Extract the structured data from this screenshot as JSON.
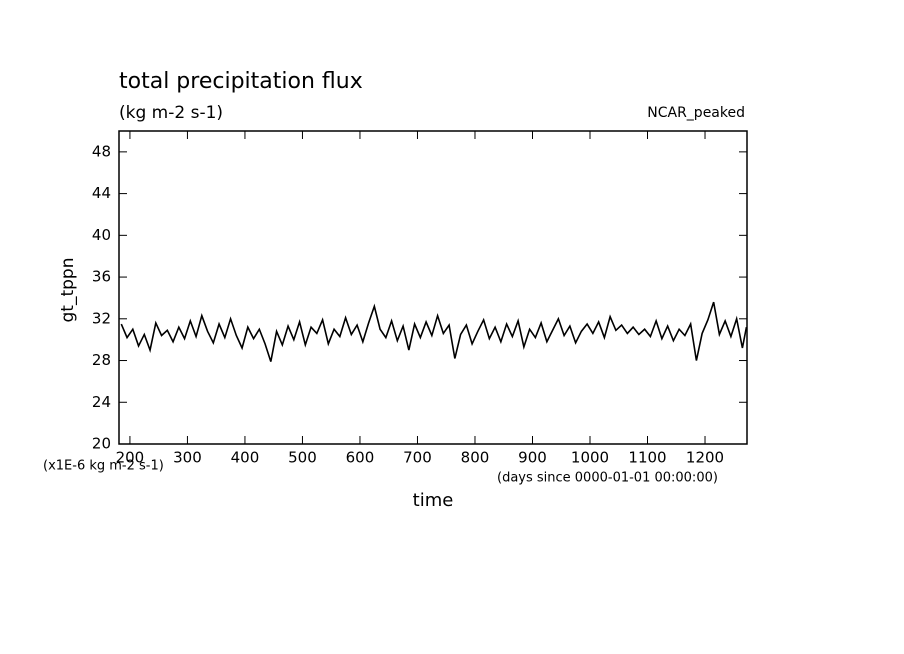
{
  "chart_data": {
    "type": "line",
    "title": "total precipitation flux",
    "subtitle": "(kg m-2 s-1)",
    "annotation": "NCAR_peaked",
    "ylabel": "gt_tppn",
    "yunits": "(x1E-6 kg m-2 s-1)",
    "xlabel": "time",
    "xunits": "(days since 0000-01-01 00:00:00)",
    "xlim": [
      181,
      1273
    ],
    "ylim": [
      20,
      50
    ],
    "xticks": [
      200,
      300,
      400,
      500,
      600,
      700,
      800,
      900,
      1000,
      1100,
      1200
    ],
    "yticks": [
      20,
      24,
      28,
      32,
      36,
      40,
      44,
      48
    ],
    "color": "#000000",
    "x": [
      185,
      195,
      205,
      215,
      225,
      235,
      245,
      255,
      265,
      275,
      285,
      295,
      305,
      315,
      325,
      335,
      345,
      355,
      365,
      375,
      385,
      395,
      405,
      415,
      425,
      435,
      445,
      455,
      465,
      475,
      485,
      495,
      505,
      515,
      525,
      535,
      545,
      555,
      565,
      575,
      585,
      595,
      605,
      615,
      625,
      635,
      645,
      655,
      665,
      675,
      685,
      695,
      705,
      715,
      725,
      735,
      745,
      755,
      765,
      775,
      785,
      795,
      805,
      815,
      825,
      835,
      845,
      855,
      865,
      875,
      885,
      895,
      905,
      915,
      925,
      935,
      945,
      955,
      965,
      975,
      985,
      995,
      1005,
      1015,
      1025,
      1035,
      1045,
      1055,
      1065,
      1075,
      1085,
      1095,
      1105,
      1115,
      1125,
      1135,
      1145,
      1155,
      1165,
      1175,
      1185,
      1195,
      1205,
      1215,
      1225,
      1235,
      1245,
      1255,
      1265,
      1272
    ],
    "values": [
      31.5,
      30.2,
      31.0,
      29.4,
      30.5,
      29.0,
      31.6,
      30.4,
      30.9,
      29.8,
      31.2,
      30.1,
      31.8,
      30.3,
      32.3,
      30.8,
      29.7,
      31.5,
      30.2,
      32.0,
      30.4,
      29.2,
      31.2,
      30.1,
      31.0,
      29.6,
      27.9,
      30.8,
      29.5,
      31.3,
      30.0,
      31.7,
      29.5,
      31.2,
      30.6,
      31.9,
      29.6,
      31.0,
      30.3,
      32.1,
      30.5,
      31.4,
      29.8,
      31.6,
      33.2,
      31.0,
      30.2,
      31.8,
      29.9,
      31.3,
      29.0,
      31.5,
      30.2,
      31.7,
      30.4,
      32.3,
      30.6,
      31.4,
      28.2,
      30.5,
      31.4,
      29.6,
      30.8,
      31.9,
      30.1,
      31.2,
      29.8,
      31.5,
      30.3,
      31.8,
      29.3,
      31.0,
      30.2,
      31.6,
      29.8,
      30.9,
      32.0,
      30.4,
      31.3,
      29.7,
      30.8,
      31.5,
      30.6,
      31.7,
      30.2,
      32.2,
      30.9,
      31.4,
      30.6,
      31.2,
      30.5,
      31.0,
      30.3,
      31.8,
      30.1,
      31.3,
      29.9,
      31.0,
      30.4,
      31.5,
      28.0,
      30.6,
      31.9,
      33.6,
      30.5,
      31.8,
      30.3,
      32.0,
      29.2,
      31.2
    ]
  }
}
